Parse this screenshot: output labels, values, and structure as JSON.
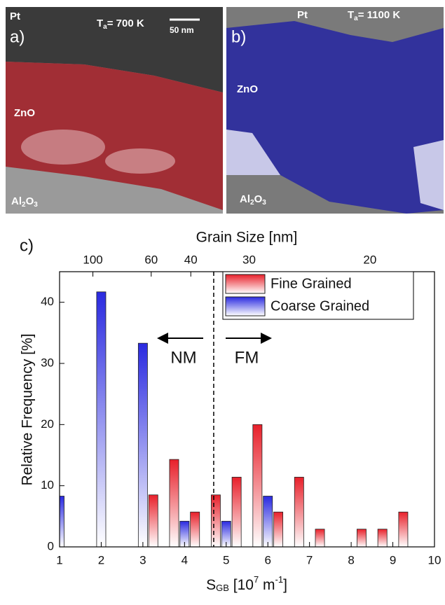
{
  "panels": {
    "a": {
      "label": "a)",
      "top": "Pt",
      "temp": [
        "T",
        "a",
        "= 700 K"
      ],
      "scale": "50 nm",
      "film": "ZnO",
      "substrate": [
        "Al",
        "2",
        "O",
        "3"
      ]
    },
    "b": {
      "label": "b)",
      "top": "Pt",
      "temp": [
        "T",
        "a",
        "= 1100 K"
      ],
      "film": "ZnO",
      "substrate": [
        "Al",
        "2",
        "O",
        "3"
      ]
    }
  },
  "chart_data": {
    "type": "bar",
    "panel_label": "c)",
    "x2label": "Grain Size [nm]",
    "xlabel": [
      "S",
      "GB",
      " [10",
      "7",
      " m",
      "-1",
      "]"
    ],
    "ylabel": "Relative Frequency [%]",
    "xlim": [
      1,
      10
    ],
    "xticks": [
      1,
      2,
      3,
      4,
      5,
      6,
      7,
      8,
      9,
      10
    ],
    "x2ticks": [
      {
        "value": 1.8,
        "label": "100"
      },
      {
        "value": 3.2,
        "label": "60"
      },
      {
        "value": 4.15,
        "label": "40"
      },
      {
        "value": 5.55,
        "label": "30"
      },
      {
        "value": 8.45,
        "label": "20"
      }
    ],
    "ylim": [
      0,
      45
    ],
    "yticks": [
      0,
      10,
      20,
      30,
      40
    ],
    "divider": 4.7,
    "annotations": [
      "NM",
      "FM"
    ],
    "legend": "upper right",
    "series": [
      {
        "name": "Fine Grained",
        "color": "#e8202a",
        "x": [
          3.25,
          3.75,
          4.25,
          4.75,
          5.25,
          5.75,
          6.25,
          6.75,
          7.25,
          8.25,
          8.75,
          9.25
        ],
        "values": [
          8.5,
          14.3,
          5.7,
          8.5,
          11.4,
          20,
          5.7,
          11.4,
          2.9,
          2.9,
          2.9,
          5.7
        ]
      },
      {
        "name": "Coarse Grained",
        "color": "#2a2ae0",
        "x": [
          1,
          2,
          3,
          4,
          5,
          6
        ],
        "values": [
          8.3,
          41.7,
          33.3,
          4.2,
          4.2,
          8.3
        ]
      }
    ]
  }
}
